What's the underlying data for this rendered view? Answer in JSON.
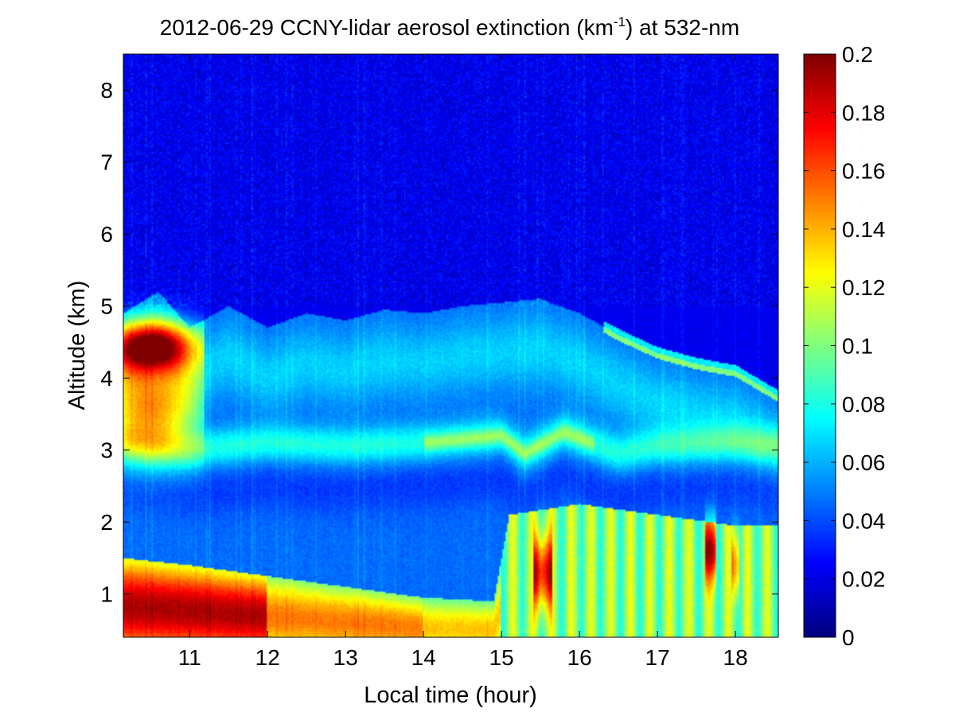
{
  "chart_data": {
    "type": "heatmap",
    "title": {
      "main": "2012-06-29 CCNY-lidar aerosol extinction (km",
      "sup": "-1",
      "rest": ") at 532-nm"
    },
    "xlabel": "Local time (hour)",
    "ylabel": "Altitude (km)",
    "xlim": [
      10.15,
      18.55
    ],
    "ylim": [
      0.4,
      8.5
    ],
    "xticks": [
      11,
      12,
      13,
      14,
      15,
      16,
      17,
      18
    ],
    "xtick_labels": [
      "11",
      "12",
      "13",
      "14",
      "15",
      "16",
      "17",
      "18"
    ],
    "yticks": [
      1,
      2,
      3,
      4,
      5,
      6,
      7,
      8
    ],
    "ytick_labels": [
      "1",
      "2",
      "3",
      "4",
      "5",
      "6",
      "7",
      "8"
    ],
    "colormap": "jet",
    "clim": [
      0,
      0.2
    ],
    "colorbar_ticks": [
      0,
      0.02,
      0.04,
      0.06,
      0.08,
      0.1,
      0.12,
      0.14,
      0.16,
      0.18,
      0.2
    ],
    "colorbar_labels": [
      "0",
      "0.02",
      "0.04",
      "0.06",
      "0.08",
      "0.1",
      "0.12",
      "0.14",
      "0.16",
      "0.18",
      "0.2"
    ],
    "features": {
      "free_troposphere_background": 0.02,
      "elevated_layer_top_km": [
        [
          10.15,
          4.9
        ],
        [
          10.6,
          5.2
        ],
        [
          11.0,
          4.7
        ],
        [
          11.5,
          5.0
        ],
        [
          12.0,
          4.7
        ],
        [
          12.5,
          4.9
        ],
        [
          13.0,
          4.8
        ],
        [
          13.5,
          4.95
        ],
        [
          14.0,
          4.9
        ],
        [
          14.5,
          5.0
        ],
        [
          15.0,
          5.05
        ],
        [
          15.5,
          5.1
        ],
        [
          16.0,
          4.9
        ],
        [
          16.5,
          4.6
        ],
        [
          17.0,
          4.35
        ],
        [
          17.5,
          4.2
        ],
        [
          18.0,
          4.1
        ],
        [
          18.55,
          3.75
        ]
      ],
      "layer_at_3km_km": [
        [
          10.15,
          3.1
        ],
        [
          11.0,
          3.0
        ],
        [
          12.0,
          3.1
        ],
        [
          13.0,
          3.05
        ],
        [
          14.0,
          3.1
        ],
        [
          14.5,
          3.15
        ],
        [
          15.0,
          3.2
        ],
        [
          15.3,
          2.95
        ],
        [
          15.8,
          3.25
        ],
        [
          16.5,
          2.95
        ],
        [
          17.0,
          3.05
        ],
        [
          18.0,
          3.1
        ],
        [
          18.55,
          3.05
        ]
      ],
      "boundary_layer_top_km": [
        [
          10.15,
          1.5
        ],
        [
          11.0,
          1.4
        ],
        [
          12.0,
          1.25
        ],
        [
          13.0,
          1.1
        ],
        [
          14.0,
          0.95
        ],
        [
          14.9,
          0.9
        ],
        [
          15.1,
          2.1
        ],
        [
          16.0,
          2.25
        ],
        [
          17.0,
          2.1
        ],
        [
          18.0,
          1.95
        ],
        [
          18.55,
          1.95
        ]
      ],
      "dense_plume_max_extinction": 0.2
    }
  }
}
